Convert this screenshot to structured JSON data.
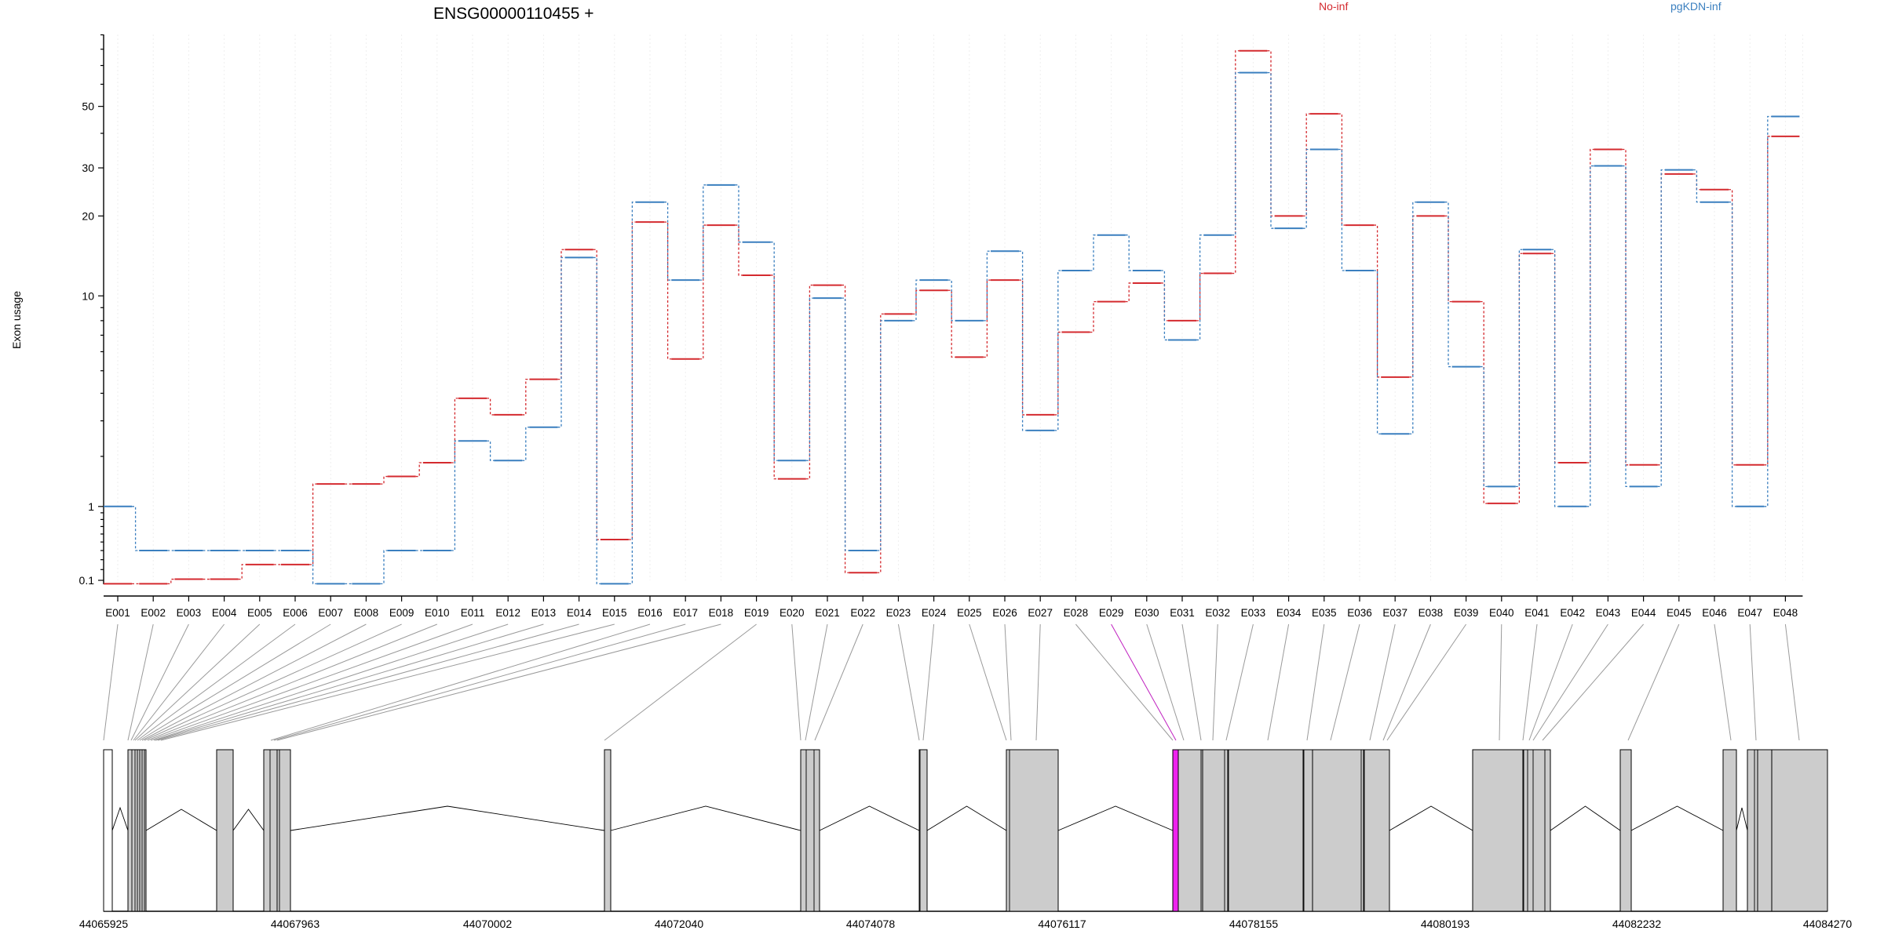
{
  "chart_data": {
    "type": "line",
    "title": "ENSG00000110455 +",
    "ylabel": "Exon usage",
    "y_scale": "log1p",
    "ylim": [
      0,
      100
    ],
    "yticks": [
      0.1,
      1,
      10,
      20,
      30,
      50
    ],
    "grid": true,
    "legend_placement": "top",
    "categories": [
      "E001",
      "E002",
      "E003",
      "E004",
      "E005",
      "E006",
      "E007",
      "E008",
      "E009",
      "E010",
      "E011",
      "E012",
      "E013",
      "E014",
      "E015",
      "E016",
      "E017",
      "E018",
      "E019",
      "E020",
      "E021",
      "E022",
      "E023",
      "E024",
      "E025",
      "E026",
      "E027",
      "E028",
      "E029",
      "E030",
      "E031",
      "E032",
      "E033",
      "E034",
      "E035",
      "E036",
      "E037",
      "E038",
      "E039",
      "E040",
      "E041",
      "E042",
      "E043",
      "E044",
      "E045",
      "E046",
      "E047",
      "E048"
    ],
    "series": [
      {
        "name": "No-inf",
        "color": "#d42a2f",
        "values": [
          0.07,
          0.07,
          0.11,
          0.11,
          0.25,
          0.25,
          1.4,
          1.4,
          1.55,
          1.85,
          3.8,
          3.2,
          4.6,
          15,
          0.53,
          19,
          5.6,
          18.5,
          12,
          1.5,
          11,
          0.17,
          8.5,
          10.5,
          5.7,
          11.5,
          3.2,
          7.2,
          9.5,
          11.2,
          8,
          12.2,
          79,
          20,
          47,
          18.5,
          4.7,
          20,
          9.5,
          1.05,
          14.5,
          1.85,
          35,
          1.8,
          28.5,
          25,
          1.8,
          39
        ]
      },
      {
        "name": "pgKDN-inf",
        "color": "#3a7fbf",
        "values": [
          1.0,
          0.4,
          0.4,
          0.4,
          0.4,
          0.4,
          0.07,
          0.07,
          0.4,
          0.4,
          2.4,
          1.9,
          2.8,
          14,
          0.07,
          22.5,
          11.5,
          26,
          16,
          1.9,
          9.8,
          0.4,
          8,
          11.5,
          8,
          14.8,
          2.7,
          12.5,
          17,
          12.5,
          6.7,
          17,
          66,
          18,
          35,
          12.5,
          2.6,
          22.5,
          5.2,
          1.35,
          15,
          1.0,
          30.5,
          1.35,
          29.5,
          22.5,
          1.0,
          46
        ]
      }
    ],
    "gene_model": {
      "coordinate_labels": [
        "44065925",
        "44067963",
        "44070002",
        "44072040",
        "44074078",
        "44076117",
        "44078155",
        "44080193",
        "44082232",
        "44084270"
      ],
      "highlighted_exon": "E029"
    }
  },
  "colors": {
    "no_inf": "#d42a2f",
    "pgkdn_inf": "#3a7fbf",
    "exon_fill": "#cccccc",
    "highlight": "#ee22ee"
  }
}
